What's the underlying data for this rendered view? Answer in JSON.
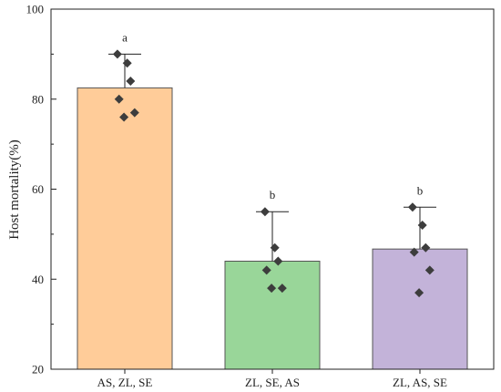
{
  "chart_data": {
    "type": "bar",
    "title": "",
    "xlabel": "",
    "ylabel": "Host mortality(%)",
    "ylim": [
      20,
      100
    ],
    "yticks": [
      20,
      40,
      60,
      80,
      100
    ],
    "grid": false,
    "categories": [
      "AS, ZL, SE",
      "ZL, SE, AS",
      "ZL, AS, SE"
    ],
    "values": [
      82.5,
      44,
      46.7
    ],
    "error_upper": [
      90,
      55,
      56
    ],
    "significance_letters": [
      "a",
      "b",
      "b"
    ],
    "points": [
      [
        90,
        88,
        84,
        80,
        77,
        76
      ],
      [
        55,
        47,
        44,
        42,
        38,
        38
      ],
      [
        56,
        52,
        47,
        46,
        42,
        37
      ]
    ],
    "colors": {
      "bars": [
        "#FFCC99",
        "#99D699",
        "#C3B3D9"
      ],
      "bar_edge": "#555555",
      "points": "#3d3d3d",
      "axis": "#222222"
    }
  }
}
